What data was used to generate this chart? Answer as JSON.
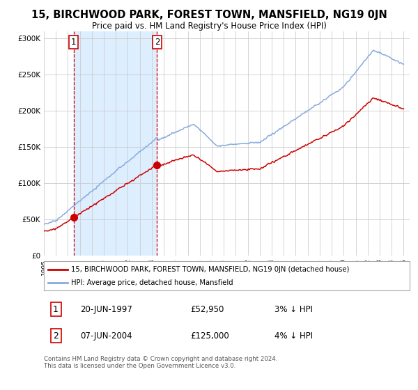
{
  "title": "15, BIRCHWOOD PARK, FOREST TOWN, MANSFIELD, NG19 0JN",
  "subtitle": "Price paid vs. HM Land Registry's House Price Index (HPI)",
  "legend_line1": "15, BIRCHWOOD PARK, FOREST TOWN, MANSFIELD, NG19 0JN (detached house)",
  "legend_line2": "HPI: Average price, detached house, Mansfield",
  "annotation1_date": "20-JUN-1997",
  "annotation1_price": "£52,950",
  "annotation1_hpi": "3% ↓ HPI",
  "annotation1_year": 1997.47,
  "annotation1_value": 52950,
  "annotation2_date": "07-JUN-2004",
  "annotation2_price": "£125,000",
  "annotation2_hpi": "4% ↓ HPI",
  "annotation2_year": 2004.44,
  "annotation2_value": 125000,
  "footer": "Contains HM Land Registry data © Crown copyright and database right 2024.\nThis data is licensed under the Open Government Licence v3.0.",
  "ylim": [
    0,
    310000
  ],
  "yticks": [
    0,
    50000,
    100000,
    150000,
    200000,
    250000,
    300000
  ],
  "line_color_red": "#cc0000",
  "line_color_blue": "#88aadd",
  "shade_color": "#ddeeff",
  "annotation_box_color": "#cc0000",
  "background_color": "#ffffff",
  "grid_color": "#cccccc"
}
